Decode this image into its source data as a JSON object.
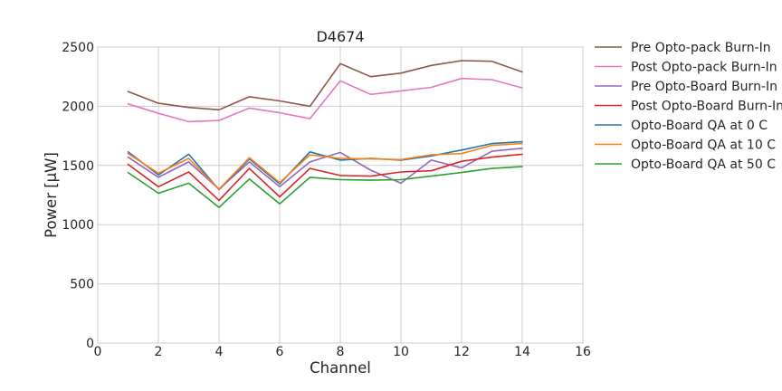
{
  "chart_data": {
    "type": "line",
    "title": "D4674",
    "xlabel": "Channel",
    "ylabel": "Power [μW]",
    "xlim": [
      0,
      16
    ],
    "ylim": [
      0,
      2500
    ],
    "xticks": [
      0,
      2,
      4,
      6,
      8,
      10,
      12,
      14,
      16
    ],
    "yticks": [
      0,
      500,
      1000,
      1500,
      2000,
      2500
    ],
    "grid": true,
    "legend_position": "outside-right",
    "x": [
      1,
      2,
      3,
      4,
      5,
      6,
      7,
      8,
      9,
      10,
      11,
      12,
      13,
      14
    ],
    "series": [
      {
        "name": "Pre Opto-pack Burn-In",
        "color": "#8c564b",
        "values": [
          2125,
          2025,
          1990,
          1970,
          2080,
          2045,
          2000,
          2360,
          2250,
          2280,
          2345,
          2385,
          2380,
          2290
        ]
      },
      {
        "name": "Post Opto-pack Burn-In",
        "color": "#e377c2",
        "values": [
          2020,
          1940,
          1870,
          1880,
          1985,
          1945,
          1895,
          2215,
          2100,
          2130,
          2160,
          2235,
          2225,
          2155
        ]
      },
      {
        "name": "Pre Opto-Board Burn-In",
        "color": "#9467bd",
        "values": [
          1570,
          1400,
          1530,
          1300,
          1530,
          1320,
          1530,
          1610,
          1460,
          1350,
          1545,
          1480,
          1620,
          1645
        ]
      },
      {
        "name": "Post Opto-Board Burn-In",
        "color": "#d62728",
        "values": [
          1510,
          1320,
          1445,
          1205,
          1475,
          1235,
          1475,
          1415,
          1410,
          1445,
          1455,
          1535,
          1570,
          1595
        ]
      },
      {
        "name": "Opto-Board QA at 0 C",
        "color": "#1f77b4",
        "values": [
          1615,
          1420,
          1595,
          1295,
          1555,
          1345,
          1615,
          1545,
          1560,
          1545,
          1580,
          1630,
          1685,
          1700
        ]
      },
      {
        "name": "Opto-Board QA at 10 C",
        "color": "#ff7f0e",
        "values": [
          1600,
          1435,
          1560,
          1300,
          1565,
          1355,
          1590,
          1560,
          1555,
          1550,
          1590,
          1600,
          1670,
          1685
        ]
      },
      {
        "name": "Opto-Board QA at 50 C",
        "color": "#2ca02c",
        "values": [
          1440,
          1265,
          1350,
          1145,
          1385,
          1175,
          1400,
          1380,
          1375,
          1380,
          1410,
          1440,
          1475,
          1490
        ]
      }
    ]
  }
}
